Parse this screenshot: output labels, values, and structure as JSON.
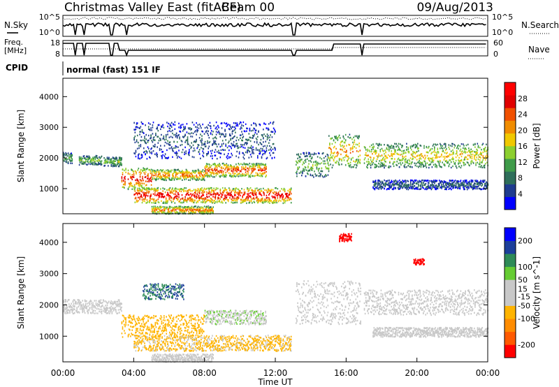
{
  "header": {
    "title": "Christmas Valley East (fitACF)",
    "beam": "Beam 00",
    "date": "09/Aug/2013"
  },
  "summary_panels": {
    "nsky": {
      "left_label": "N.Sky",
      "left_ticks": [
        "10^5",
        "10^0"
      ],
      "right_label": "N.Search",
      "right_ticks": [
        "10^5",
        "10^0"
      ]
    },
    "freq": {
      "left_label_lines": [
        "Freq.",
        "[MHz]"
      ],
      "left_ticks": [
        "18",
        "8"
      ],
      "right_label": "Nave",
      "right_ticks": [
        "60",
        "0"
      ]
    },
    "cpid": {
      "label": "CPID",
      "text": "normal (fast) 151 IF"
    }
  },
  "colors": {
    "power_scale": [
      "#0000ff",
      "#1f3c8f",
      "#2e6e5a",
      "#3f9b4a",
      "#8ccf2f",
      "#f0c800",
      "#f08c00",
      "#f05000",
      "#e00000",
      "#ff0000"
    ],
    "velocity_scale": [
      "#ff0000",
      "#ff5a00",
      "#ff8c00",
      "#ffb400",
      "#c8c8c8",
      "#c8c8c8",
      "#66cc33",
      "#2e8b57",
      "#1c3f9a",
      "#0000ff"
    ],
    "ground_scatter": "#c8c8c8"
  },
  "chart_data": [
    {
      "type": "heatmap",
      "name": "Power panel",
      "xlabel": "",
      "ylabel": "Slant Range [km]",
      "xlim_hours": [
        0,
        24
      ],
      "ylim_km": [
        180,
        4600
      ],
      "y_ticks": [
        "4000",
        "3000",
        "2000",
        "1000"
      ],
      "y_tick_values": [
        4000,
        3000,
        2000,
        1000
      ],
      "colorbar": {
        "label": "Power [dB]",
        "range": [
          0,
          32
        ],
        "ticks": [
          "28",
          "24",
          "20",
          "16",
          "12",
          "8",
          "4"
        ],
        "tick_values": [
          28,
          24,
          20,
          16,
          12,
          8,
          4
        ]
      },
      "data_gaps_hours": [
        [
          3.55,
          3.62
        ],
        [
          12.95,
          13.1
        ],
        [
          16.85,
          16.95
        ]
      ],
      "echo_bands": [
        {
          "t0": 0.0,
          "t1": 0.5,
          "r0": 1850,
          "r1": 2200,
          "power": 10
        },
        {
          "t0": 0.9,
          "t1": 2.2,
          "r0": 1800,
          "r1": 2100,
          "power": 12
        },
        {
          "t0": 2.3,
          "t1": 3.3,
          "r0": 1750,
          "r1": 2050,
          "power": 12
        },
        {
          "t0": 3.3,
          "t1": 5.0,
          "r0": 1000,
          "r1": 1700,
          "power": 24
        },
        {
          "t0": 5.0,
          "t1": 8.0,
          "r0": 1300,
          "r1": 1650,
          "power": 20
        },
        {
          "t0": 8.0,
          "t1": 11.5,
          "r0": 1400,
          "r1": 1850,
          "power": 22
        },
        {
          "t0": 4.0,
          "t1": 12.9,
          "r0": 550,
          "r1": 1050,
          "power": 26
        },
        {
          "t0": 5.0,
          "t1": 8.5,
          "r0": 200,
          "r1": 450,
          "power": 20
        },
        {
          "t0": 13.1,
          "t1": 15.0,
          "r0": 1400,
          "r1": 2200,
          "power": 12
        },
        {
          "t0": 15.0,
          "t1": 16.8,
          "r0": 1700,
          "r1": 2800,
          "power": 18
        },
        {
          "t0": 17.0,
          "t1": 24.0,
          "r0": 1700,
          "r1": 2500,
          "power": 16
        },
        {
          "t0": 17.5,
          "t1": 24.0,
          "r0": 1000,
          "r1": 1300,
          "power": 6
        },
        {
          "t0": 4.0,
          "t1": 12.0,
          "r0": 2000,
          "r1": 3200,
          "power": 6
        }
      ]
    },
    {
      "type": "heatmap",
      "name": "Velocity panel",
      "xlabel": "Time UT",
      "ylabel": "Slant Range [km]",
      "xlim_hours": [
        0,
        24
      ],
      "ylim_km": [
        180,
        4600
      ],
      "x_ticks": [
        "00:00",
        "04:00",
        "08:00",
        "12:00",
        "16:00",
        "20:00",
        "00:00"
      ],
      "x_tick_values": [
        0,
        4,
        8,
        12,
        16,
        20,
        24
      ],
      "y_ticks": [
        "4000",
        "3000",
        "2000",
        "1000"
      ],
      "y_tick_values": [
        4000,
        3000,
        2000,
        1000
      ],
      "colorbar": {
        "label": "Velocity [m s^-1]",
        "range": [
          -250,
          250
        ],
        "ticks": [
          "200",
          "100",
          "50",
          "15",
          "-15",
          "-50",
          "-100",
          "-200"
        ],
        "tick_values": [
          200,
          100,
          50,
          15,
          -15,
          -50,
          -100,
          -200
        ]
      },
      "data_gaps_hours": [
        [
          3.55,
          3.62
        ],
        [
          12.95,
          13.1
        ],
        [
          16.85,
          16.95
        ]
      ],
      "echo_bands": [
        {
          "t0": 0.0,
          "t1": 3.3,
          "r0": 1750,
          "r1": 2200,
          "velocity": 0
        },
        {
          "t0": 3.3,
          "t1": 8.0,
          "r0": 1000,
          "r1": 1700,
          "velocity": -80
        },
        {
          "t0": 8.0,
          "t1": 11.5,
          "r0": 1400,
          "r1": 1850,
          "velocity": 40
        },
        {
          "t0": 4.0,
          "t1": 12.9,
          "r0": 550,
          "r1": 1050,
          "velocity": -60
        },
        {
          "t0": 5.0,
          "t1": 8.5,
          "r0": 200,
          "r1": 450,
          "velocity": 30
        },
        {
          "t0": 13.1,
          "t1": 16.8,
          "r0": 1400,
          "r1": 2800,
          "velocity": 0
        },
        {
          "t0": 17.0,
          "t1": 24.0,
          "r0": 1700,
          "r1": 2500,
          "velocity": 0
        },
        {
          "t0": 17.5,
          "t1": 24.0,
          "r0": 1000,
          "r1": 1300,
          "velocity": 0
        },
        {
          "t0": 4.5,
          "t1": 6.8,
          "r0": 2200,
          "r1": 2700,
          "velocity": 150
        },
        {
          "t0": 19.8,
          "t1": 20.4,
          "r0": 3300,
          "r1": 3500,
          "velocity": -220
        },
        {
          "t0": 15.6,
          "t1": 16.3,
          "r0": 4050,
          "r1": 4300,
          "velocity": -220
        }
      ]
    }
  ]
}
